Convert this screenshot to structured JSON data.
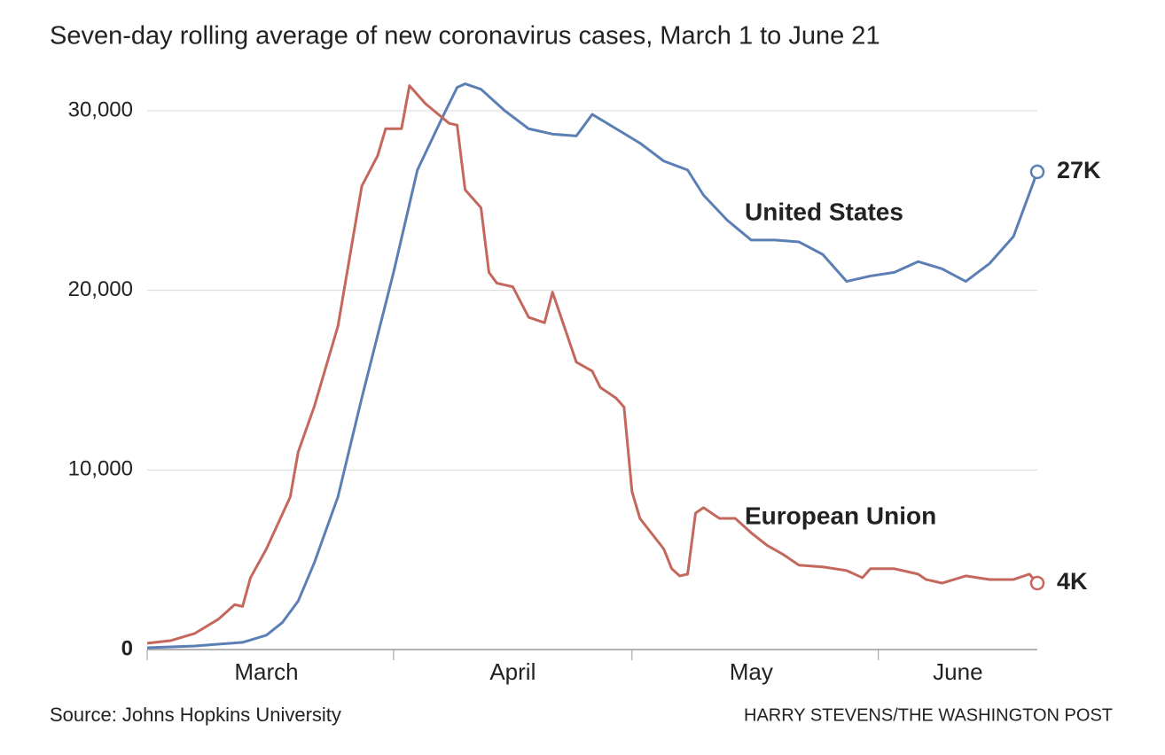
{
  "chart_data": {
    "type": "line",
    "title": "Seven-day rolling average of new coronavirus cases, March 1 to June 21",
    "source": "Source: Johns Hopkins University",
    "credit": "HARRY STEVENS/THE WASHINGTON POST",
    "xlim": [
      0,
      112
    ],
    "xticks": [
      {
        "value": 15,
        "label": "March"
      },
      {
        "value": 46,
        "label": "April"
      },
      {
        "value": 76,
        "label": "May"
      },
      {
        "value": 102,
        "label": "June"
      }
    ],
    "minor_xticks": [
      31,
      61,
      92
    ],
    "ylim": [
      0,
      30000
    ],
    "yticks": [
      {
        "value": 0,
        "label": "0"
      },
      {
        "value": 10000,
        "label": "10,000"
      },
      {
        "value": 20000,
        "label": "20,000"
      },
      {
        "value": 30000,
        "label": "30,000"
      }
    ],
    "grid": true,
    "series": [
      {
        "name": "United States",
        "color": "#5b7fb5",
        "end_label": "27K",
        "x": [
          0,
          6,
          12,
          15,
          17,
          19,
          21,
          24,
          27,
          31,
          34,
          37,
          39,
          40,
          42,
          45,
          48,
          51,
          54,
          56,
          59,
          62,
          65,
          68,
          70,
          73,
          76,
          79,
          82,
          85,
          88,
          91,
          94,
          97,
          100,
          103,
          106,
          109,
          112
        ],
        "values": [
          100,
          200,
          400,
          800,
          1500,
          2700,
          4800,
          8500,
          14000,
          21000,
          26700,
          29500,
          31300,
          31500,
          31200,
          30000,
          29000,
          28700,
          28600,
          29800,
          29000,
          28200,
          27200,
          26700,
          25300,
          23900,
          22800,
          22800,
          22700,
          22000,
          20500,
          20800,
          21000,
          21600,
          21200,
          20500,
          21500,
          23000,
          26600
        ]
      },
      {
        "name": "European Union",
        "color": "#c4675c",
        "end_label": "4K",
        "x": [
          0,
          3,
          6,
          9,
          11,
          12,
          13,
          15,
          18,
          19,
          21,
          24,
          27,
          29,
          30,
          32,
          33,
          35,
          38,
          39,
          40,
          42,
          43,
          44,
          46,
          48,
          50,
          51,
          52,
          54,
          56,
          57,
          59,
          60,
          61,
          62,
          65,
          66,
          67,
          68,
          69,
          70,
          72,
          74,
          76,
          78,
          80,
          82,
          85,
          88,
          90,
          91,
          94,
          97,
          98,
          100,
          103,
          106,
          109,
          111,
          112
        ],
        "values": [
          350,
          500,
          900,
          1700,
          2500,
          2400,
          4000,
          5600,
          8500,
          11000,
          13500,
          18000,
          25800,
          27500,
          29000,
          29000,
          31400,
          30400,
          29300,
          29200,
          25600,
          24600,
          21000,
          20400,
          20200,
          18500,
          18200,
          19900,
          18600,
          16000,
          15500,
          14600,
          14000,
          13500,
          8800,
          7300,
          5600,
          4500,
          4100,
          4200,
          7600,
          7900,
          7300,
          7300,
          6500,
          5800,
          5300,
          4700,
          4600,
          4400,
          4000,
          4500,
          4500,
          4200,
          3900,
          3700,
          4100,
          3900,
          3900,
          4200,
          3700
        ]
      }
    ]
  }
}
